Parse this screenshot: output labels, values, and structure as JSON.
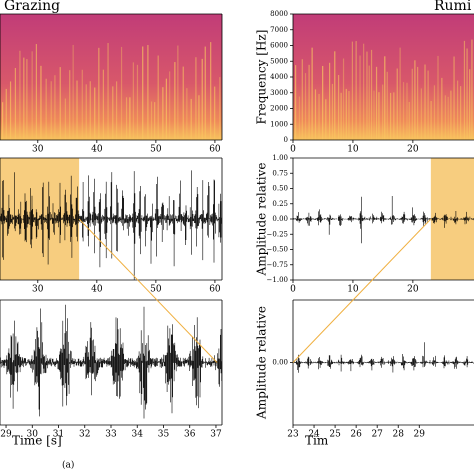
{
  "chart_data": [
    {
      "type": "spectrogram",
      "title": "Grazing",
      "xlim": [
        23.6,
        61.2
      ],
      "xticks": [
        30,
        40,
        50,
        60
      ]
    },
    {
      "type": "waveform",
      "xlim": [
        23.6,
        61.2
      ],
      "xticks": [
        30,
        40,
        50,
        60
      ],
      "highlight": [
        23.6,
        37
      ],
      "highlight_color": "#f6c469"
    },
    {
      "type": "waveform",
      "xlim": [
        28.77,
        37.23
      ],
      "xticks": [
        29,
        30,
        31,
        32,
        33,
        34,
        35,
        36,
        37
      ],
      "xlabel": "Time [s]"
    },
    {
      "type": "spectrogram",
      "title": "Rumi",
      "xlim": [
        0,
        30.2
      ],
      "xticks": [
        0,
        10,
        20
      ],
      "ylim": [
        0,
        8000
      ],
      "yticks": [
        0,
        1000,
        2000,
        3000,
        4000,
        5000,
        6000,
        7000,
        8000
      ],
      "ylabel": "Frequency [Hz]"
    },
    {
      "type": "waveform",
      "xlim": [
        0,
        30.2
      ],
      "xticks": [
        0,
        10,
        20
      ],
      "ylim": [
        -1,
        1
      ],
      "yticks": [
        {
          "value": 1,
          "label": "1.00"
        },
        {
          "value": 0.75,
          "label": "0.75"
        },
        {
          "value": 0.5,
          "label": "0.50"
        },
        {
          "value": 0.25,
          "label": "0.25"
        },
        {
          "value": 0,
          "label": "0.00"
        },
        {
          "value": -0.25,
          "label": "−0.25"
        },
        {
          "value": -0.5,
          "label": "−0.50"
        },
        {
          "value": -0.75,
          "label": "−0.75"
        },
        {
          "value": -1,
          "label": "−1.00"
        }
      ],
      "ylabel": "Amplitude relative",
      "highlight": [
        23,
        30.2
      ],
      "highlight_color": "#f6c469"
    },
    {
      "type": "waveform",
      "xlim": [
        23,
        31.6
      ],
      "xticks": [
        23,
        24,
        25,
        26,
        27,
        28,
        29
      ],
      "ylim": [
        -1,
        1
      ],
      "yticks": [
        {
          "value": 0,
          "label": "0.00"
        }
      ],
      "ylabel": "Amplitude relative",
      "xlabel": "Tim"
    }
  ],
  "caption": "(a)"
}
